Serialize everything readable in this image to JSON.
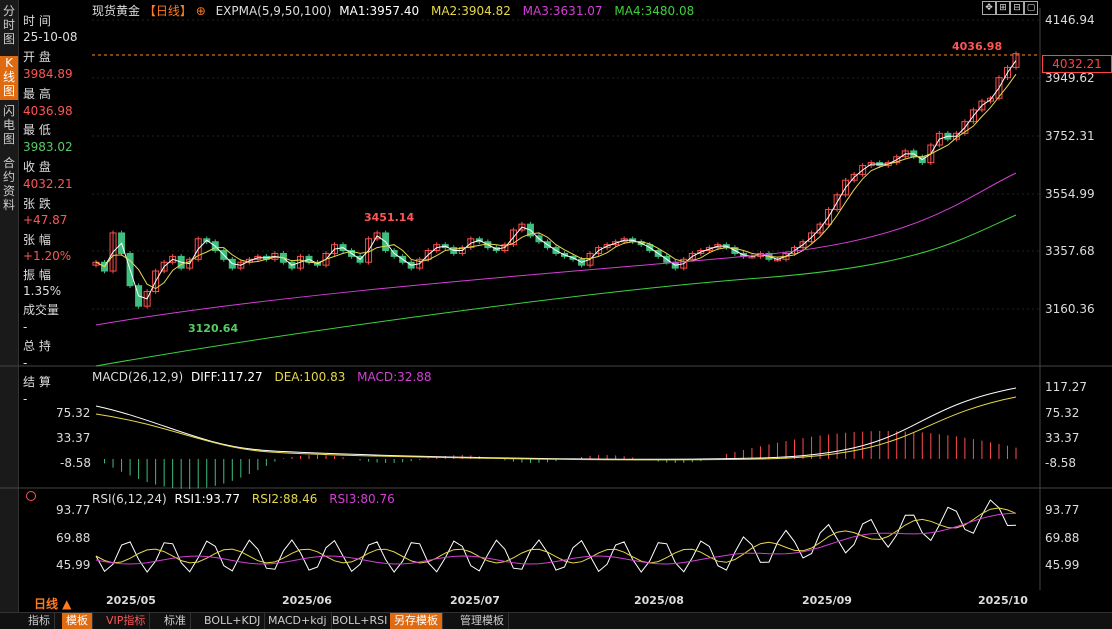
{
  "left_tabs": [
    {
      "label": "分时图",
      "active": false
    },
    {
      "label": "K线图",
      "active": true
    },
    {
      "label": "闪电图",
      "active": false
    },
    {
      "label": "合约资料",
      "active": false
    }
  ],
  "info": {
    "time_label": "时 间",
    "time_value": "25-10-08",
    "open_label": "开 盘",
    "open_value": "3984.89",
    "high_label": "最 高",
    "high_value": "4036.98",
    "low_label": "最 低",
    "low_value": "3983.02",
    "close_label": "收 盘",
    "close_value": "4032.21",
    "change_label": "张 跌",
    "change_value": "+47.87",
    "pct_label": "张 幅",
    "pct_value": "+1.20%",
    "amp_label": "振 幅",
    "amp_value": "1.35%",
    "vol_label": "成交量",
    "vol_value": "-",
    "oi_label": "总 持",
    "oi_value": "-",
    "settle_label": "结 算",
    "settle_value": "-"
  },
  "title": {
    "instrument": "现货黄金",
    "period": "【日线】",
    "plus_icon": "⊕",
    "expma": "EXPMA(5,9,50,100)",
    "ma1": "MA1:3957.40",
    "ma2": "MA2:3904.82",
    "ma3": "MA3:3631.07",
    "ma4": "MA4:3480.08"
  },
  "price_axis": [
    "4146.94",
    "3949.62",
    "3752.31",
    "3554.99",
    "3357.68",
    "3160.36"
  ],
  "current_price": "4032.21",
  "annotations": {
    "high": "4036.98",
    "peak": "3451.14",
    "low": "3120.64"
  },
  "macd": {
    "title": "MACD(26,12,9)",
    "diff": "DIFF:117.27",
    "dea": "DEA:100.83",
    "macd": "MACD:32.88",
    "axis": [
      "117.27",
      "75.32",
      "33.37",
      "-8.58"
    ]
  },
  "rsi": {
    "title": "RSI(6,12,24)",
    "rsi1": "RSI1:93.77",
    "rsi2": "RSI2:88.46",
    "rsi3": "RSI3:80.76",
    "axis": [
      "93.77",
      "69.88",
      "45.99"
    ]
  },
  "x_axis": [
    "2025/05",
    "2025/06",
    "2025/07",
    "2025/08",
    "2025/09",
    "2025/10"
  ],
  "period_label": "日线 ▲",
  "bottom_tabs": [
    {
      "label": "指标",
      "active": false,
      "vip": false
    },
    {
      "label": "模板",
      "active": true,
      "vip": false
    },
    {
      "label": "VIP指标",
      "active": false,
      "vip": true
    },
    {
      "label": "标准",
      "active": false,
      "vip": false
    },
    {
      "label": "BOLL+KDJ",
      "active": false,
      "vip": false
    },
    {
      "label": "MACD+kdj",
      "active": false,
      "vip": false
    },
    {
      "label": "BOLL+RSI",
      "active": false,
      "vip": false
    },
    {
      "label": "另存模板",
      "active": true,
      "vip": false
    },
    {
      "label": "管理模板",
      "active": false,
      "vip": false
    }
  ],
  "colors": {
    "up": "#ff4d4f",
    "down": "#3fbf7f",
    "ma1": "#ffffff",
    "ma2": "#e6d84a",
    "ma3": "#d43fd6",
    "ma4": "#3fd03f",
    "accent": "#e06a10"
  }
}
